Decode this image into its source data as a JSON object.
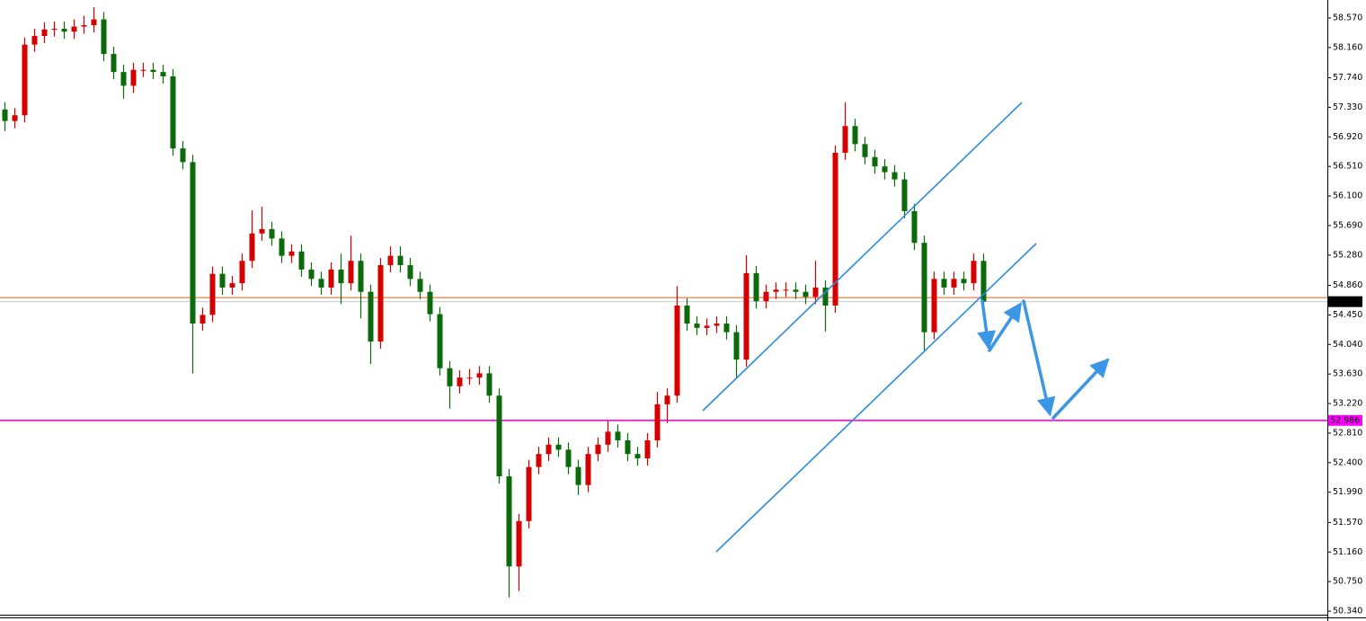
{
  "chart_data": {
    "type": "candlestick",
    "up_color": "#d40000",
    "down_color": "#0b6b0b",
    "ylim": [
      50.278,
      58.819
    ],
    "yticks": [
      {
        "value": 58.57,
        "label": "58.570"
      },
      {
        "value": 58.16,
        "label": "58.160"
      },
      {
        "value": 57.74,
        "label": "57.740"
      },
      {
        "value": 57.33,
        "label": "57.330"
      },
      {
        "value": 56.92,
        "label": "56.920"
      },
      {
        "value": 56.51,
        "label": "56.510"
      },
      {
        "value": 56.1,
        "label": "56.100"
      },
      {
        "value": 55.69,
        "label": "55.690"
      },
      {
        "value": 55.28,
        "label": "55.280"
      },
      {
        "value": 54.86,
        "label": "54.860"
      },
      {
        "value": 54.45,
        "label": "54.450"
      },
      {
        "value": 54.04,
        "label": "54.040"
      },
      {
        "value": 53.63,
        "label": "53.630"
      },
      {
        "value": 53.22,
        "label": "53.220"
      },
      {
        "value": 52.81,
        "label": "52.810"
      },
      {
        "value": 52.4,
        "label": "52.400"
      },
      {
        "value": 51.99,
        "label": "51.990"
      },
      {
        "value": 51.57,
        "label": "51.570"
      },
      {
        "value": 51.16,
        "label": "51.160"
      },
      {
        "value": 50.75,
        "label": "50.750"
      },
      {
        "value": 50.34,
        "label": "50.340"
      }
    ],
    "price_lines": [
      {
        "value": 54.69,
        "color": "#e0601a"
      },
      {
        "value": 54.634,
        "label": "54.634",
        "color": "#c8c8c8",
        "label_color": "#000000"
      },
      {
        "value": 52.986,
        "label": "52.986",
        "color": "#ff00ff",
        "label_color": "#ff00ff"
      }
    ],
    "open": [
      57.3,
      57.14,
      57.22,
      58.2,
      58.32,
      58.41,
      58.42,
      58.38,
      58.45,
      58.47,
      58.55,
      58.07,
      57.82,
      57.63,
      57.85,
      57.85,
      57.82,
      57.76,
      56.76,
      56.57,
      54.33,
      54.45,
      55.02,
      54.83,
      54.89,
      55.2,
      55.58,
      55.64,
      55.51,
      55.27,
      55.33,
      55.08,
      54.95,
      54.83,
      55.08,
      54.89,
      55.2,
      54.77,
      54.08,
      55.14,
      55.27,
      55.14,
      54.95,
      54.77,
      54.46,
      53.71,
      53.46,
      53.58,
      53.58,
      53.64,
      53.33,
      52.21,
      50.96,
      51.59,
      52.34,
      52.52,
      52.65,
      52.58,
      52.34,
      52.09,
      52.52,
      52.65,
      52.83,
      52.71,
      52.52,
      52.46,
      52.71,
      53.21,
      53.33,
      54.58,
      54.33,
      54.27,
      54.3,
      54.33,
      54.21,
      53.83,
      55.03,
      54.64,
      54.77,
      54.8,
      54.8,
      54.77,
      54.7,
      54.83,
      54.58,
      56.7,
      57.07,
      56.82,
      56.64,
      56.51,
      56.43,
      56.33,
      55.89,
      55.45,
      54.21,
      54.95,
      54.83,
      54.95,
      54.89,
      55.2
    ],
    "high": [
      57.4,
      57.32,
      58.3,
      58.42,
      58.51,
      58.52,
      58.52,
      58.55,
      58.6,
      58.72,
      58.65,
      58.17,
      57.92,
      57.95,
      57.95,
      57.95,
      57.92,
      57.86,
      56.86,
      56.67,
      54.55,
      55.12,
      55.12,
      54.99,
      55.3,
      55.9,
      55.95,
      55.74,
      55.61,
      55.43,
      55.43,
      55.18,
      55.05,
      55.18,
      55.3,
      55.55,
      55.3,
      54.87,
      55.24,
      55.4,
      55.4,
      55.24,
      55.05,
      54.87,
      54.56,
      53.81,
      53.68,
      53.7,
      53.74,
      53.74,
      53.43,
      52.31,
      51.69,
      52.44,
      52.62,
      52.75,
      52.75,
      52.68,
      52.44,
      52.62,
      52.75,
      52.98,
      52.93,
      52.81,
      52.62,
      52.81,
      53.38,
      53.43,
      54.85,
      54.68,
      54.43,
      54.4,
      54.43,
      54.43,
      54.31,
      55.28,
      55.13,
      54.87,
      54.9,
      54.9,
      54.9,
      54.87,
      55.2,
      54.93,
      56.8,
      57.4,
      57.17,
      56.92,
      56.74,
      56.61,
      56.53,
      56.43,
      55.99,
      55.55,
      55.05,
      55.05,
      55.05,
      55.05,
      55.3,
      55.3
    ],
    "low": [
      57.0,
      57.04,
      57.12,
      58.1,
      58.22,
      58.31,
      58.28,
      58.28,
      58.35,
      58.37,
      57.97,
      57.72,
      57.45,
      57.53,
      57.75,
      57.72,
      57.66,
      56.66,
      56.47,
      53.64,
      54.23,
      54.35,
      54.73,
      54.73,
      54.79,
      55.1,
      55.48,
      55.41,
      55.17,
      55.17,
      54.98,
      54.85,
      54.73,
      54.73,
      54.6,
      54.79,
      54.4,
      53.77,
      53.98,
      55.04,
      55.04,
      54.85,
      54.67,
      54.36,
      53.61,
      53.15,
      53.36,
      53.48,
      53.48,
      53.23,
      52.11,
      50.53,
      50.62,
      51.49,
      52.24,
      52.42,
      52.48,
      52.24,
      51.95,
      51.99,
      52.42,
      52.55,
      52.61,
      52.42,
      52.36,
      52.36,
      52.61,
      52.95,
      53.23,
      54.23,
      54.17,
      54.17,
      54.2,
      54.11,
      53.57,
      53.73,
      54.54,
      54.54,
      54.67,
      54.7,
      54.67,
      54.6,
      54.6,
      54.22,
      54.48,
      56.6,
      56.72,
      56.54,
      56.41,
      56.33,
      56.23,
      55.79,
      55.35,
      53.96,
      54.11,
      54.73,
      54.73,
      54.79,
      54.79,
      54.55
    ],
    "close": [
      57.14,
      57.22,
      58.2,
      58.32,
      58.41,
      58.42,
      58.38,
      58.45,
      58.47,
      58.55,
      58.07,
      57.82,
      57.63,
      57.85,
      57.85,
      57.82,
      57.76,
      56.76,
      56.57,
      54.33,
      54.45,
      55.02,
      54.83,
      54.89,
      55.2,
      55.58,
      55.64,
      55.51,
      55.27,
      55.33,
      55.08,
      54.95,
      54.83,
      55.08,
      54.89,
      55.2,
      54.77,
      54.08,
      55.14,
      55.27,
      55.14,
      54.95,
      54.77,
      54.46,
      53.71,
      53.46,
      53.58,
      53.58,
      53.64,
      53.33,
      52.21,
      50.96,
      51.59,
      52.34,
      52.52,
      52.65,
      52.58,
      52.34,
      52.09,
      52.52,
      52.65,
      52.83,
      52.71,
      52.52,
      52.46,
      52.71,
      53.21,
      53.33,
      54.58,
      54.33,
      54.27,
      54.3,
      54.33,
      54.21,
      53.83,
      55.03,
      54.64,
      54.77,
      54.8,
      54.8,
      54.77,
      54.7,
      54.83,
      54.58,
      56.7,
      57.07,
      56.82,
      56.64,
      56.51,
      56.43,
      56.33,
      55.89,
      55.45,
      54.21,
      54.95,
      54.83,
      54.95,
      54.89,
      55.2,
      54.634
    ]
  }
}
